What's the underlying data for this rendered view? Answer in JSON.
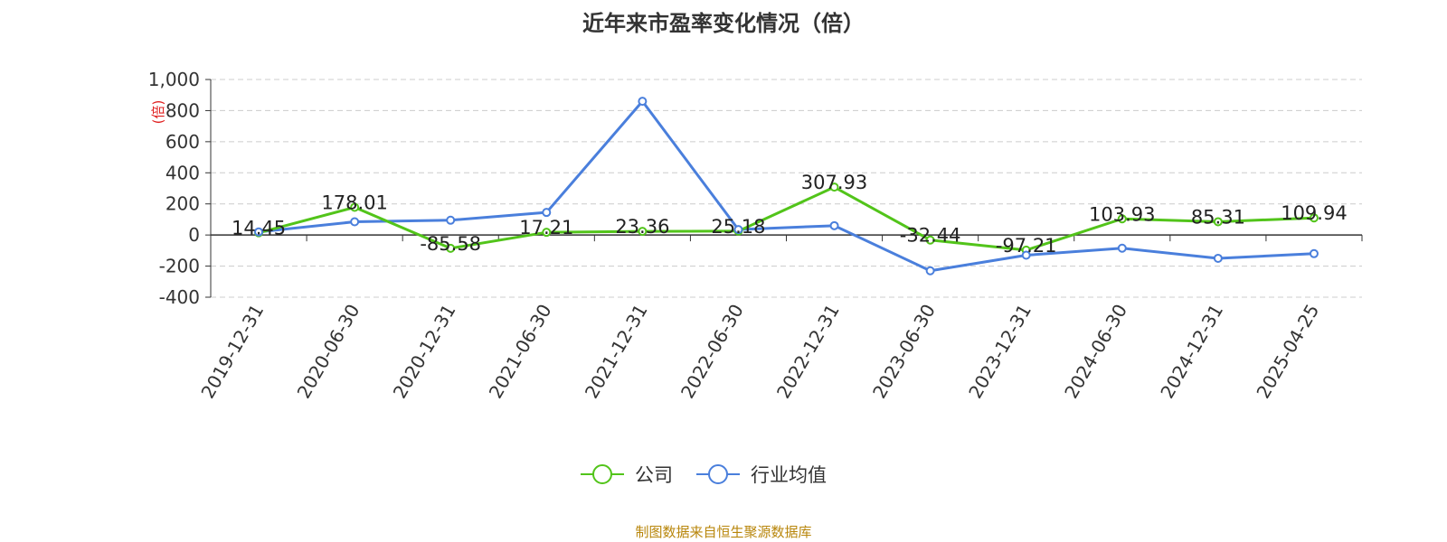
{
  "chart_data": {
    "type": "line",
    "title": "近年来市盈率变化情况（倍）",
    "ylabel": "(倍)",
    "categories": [
      "2019-12-31",
      "2020-06-30",
      "2020-12-31",
      "2021-06-30",
      "2021-12-31",
      "2022-06-30",
      "2022-12-31",
      "2023-06-30",
      "2023-12-31",
      "2024-06-30",
      "2024-12-31",
      "2025-04-25"
    ],
    "ylim": [
      -400,
      1000
    ],
    "yticks": [
      "1,000",
      "800",
      "600",
      "400",
      "200",
      "0",
      "-200",
      "-400"
    ],
    "grid": true,
    "legend_position": "bottom",
    "series": [
      {
        "name": "公司",
        "color": "#52c41a",
        "values": [
          14.45,
          178.01,
          -85.58,
          17.21,
          23.36,
          25.18,
          307.93,
          -32.44,
          -97.21,
          103.93,
          85.31,
          109.94
        ],
        "labels": [
          "14.45",
          "178.01",
          "-85.58",
          "17.21",
          "23.36",
          "25.18",
          "307.93",
          "-32.44",
          "-97.21",
          "103.93",
          "85.31",
          "109.94"
        ]
      },
      {
        "name": "行业均值",
        "color": "#4a7fdc",
        "values": [
          20,
          85,
          95,
          145,
          860,
          35,
          60,
          -230,
          -130,
          -85,
          -150,
          -120
        ]
      }
    ]
  },
  "source": "制图数据来自恒生聚源数据库"
}
